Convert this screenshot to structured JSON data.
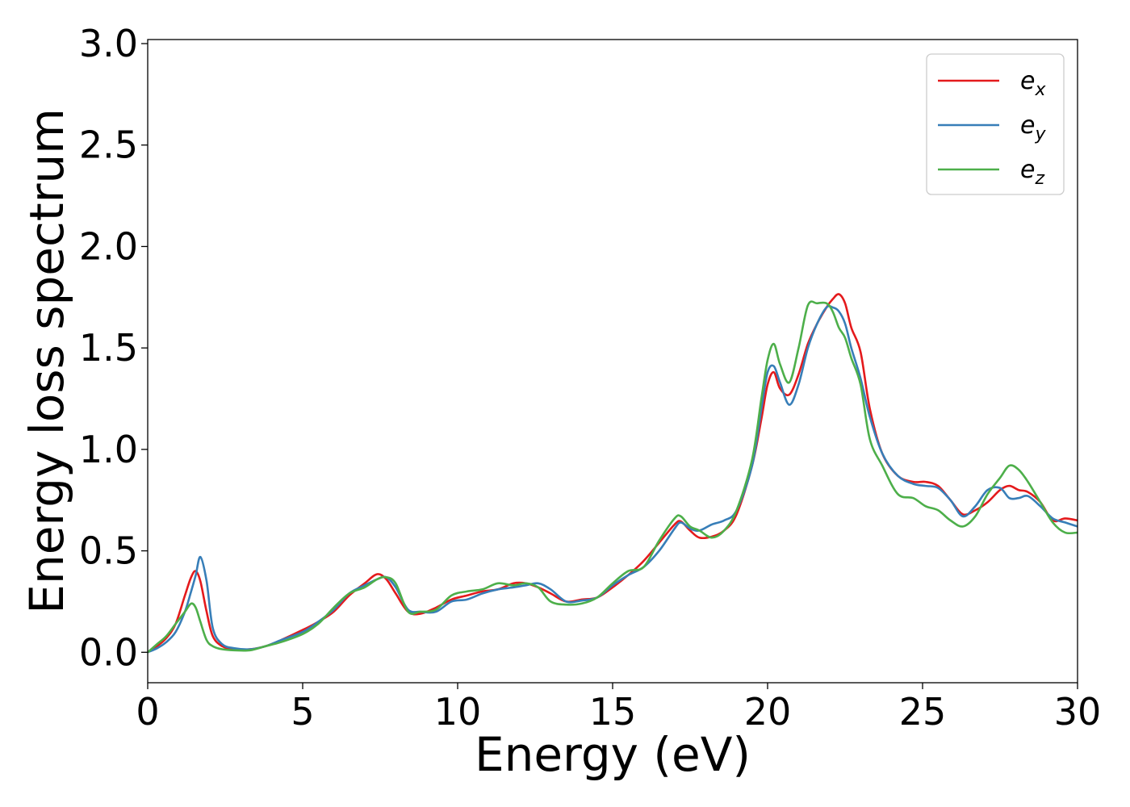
{
  "chart_data": {
    "type": "line",
    "xlabel": "Energy (eV)",
    "ylabel": "Energy loss spectrum",
    "xlim": [
      0,
      30
    ],
    "ylim": [
      -0.15,
      3.02
    ],
    "xticks": [
      0,
      5,
      10,
      15,
      20,
      25,
      30
    ],
    "yticks": [
      0.0,
      0.5,
      1.0,
      1.5,
      2.0,
      2.5,
      3.0
    ],
    "xtick_labels": [
      "0",
      "5",
      "10",
      "15",
      "20",
      "25",
      "30"
    ],
    "ytick_labels": [
      "0.0",
      "0.5",
      "1.0",
      "1.5",
      "2.0",
      "2.5",
      "3.0"
    ],
    "grid": false,
    "legend_position": "top-right",
    "series": [
      {
        "name": "e_x",
        "label_base": "e",
        "label_sub": "x",
        "color": "#e41a1c",
        "x": [
          0,
          0.3,
          0.6,
          0.9,
          1.2,
          1.4,
          1.55,
          1.7,
          1.9,
          2.1,
          2.4,
          2.8,
          3.3,
          3.8,
          4.3,
          5.0,
          5.5,
          6.0,
          6.5,
          7.0,
          7.4,
          7.7,
          8.0,
          8.4,
          8.8,
          9.3,
          9.8,
          10.3,
          10.8,
          11.3,
          11.8,
          12.2,
          12.6,
          13.0,
          13.5,
          14.0,
          14.5,
          15.0,
          15.5,
          16.0,
          16.5,
          17.0,
          17.2,
          17.5,
          17.8,
          18.2,
          18.6,
          19.0,
          19.5,
          19.8,
          20.0,
          20.2,
          20.4,
          20.7,
          21.0,
          21.3,
          21.6,
          21.9,
          22.1,
          22.3,
          22.5,
          22.7,
          23.0,
          23.3,
          23.7,
          24.2,
          24.7,
          25.1,
          25.5,
          25.9,
          26.3,
          26.7,
          27.1,
          27.5,
          27.8,
          28.1,
          28.4,
          28.8,
          29.2,
          29.6,
          30.0
        ],
        "y": [
          0,
          0.03,
          0.07,
          0.14,
          0.28,
          0.37,
          0.4,
          0.35,
          0.2,
          0.08,
          0.03,
          0.015,
          0.015,
          0.03,
          0.06,
          0.11,
          0.15,
          0.2,
          0.28,
          0.34,
          0.385,
          0.36,
          0.29,
          0.2,
          0.19,
          0.22,
          0.26,
          0.28,
          0.3,
          0.31,
          0.34,
          0.34,
          0.32,
          0.29,
          0.25,
          0.26,
          0.27,
          0.32,
          0.38,
          0.45,
          0.54,
          0.63,
          0.645,
          0.6,
          0.565,
          0.57,
          0.6,
          0.68,
          0.92,
          1.15,
          1.32,
          1.38,
          1.3,
          1.27,
          1.37,
          1.52,
          1.62,
          1.7,
          1.74,
          1.765,
          1.72,
          1.6,
          1.48,
          1.2,
          0.98,
          0.87,
          0.84,
          0.84,
          0.82,
          0.75,
          0.68,
          0.7,
          0.74,
          0.8,
          0.82,
          0.8,
          0.79,
          0.74,
          0.65,
          0.66,
          0.65
        ]
      },
      {
        "name": "e_y",
        "label_base": "e",
        "label_sub": "y",
        "color": "#377eb8",
        "x": [
          0,
          0.3,
          0.6,
          0.9,
          1.2,
          1.4,
          1.55,
          1.7,
          1.9,
          2.1,
          2.4,
          2.8,
          3.3,
          3.8,
          4.3,
          5.0,
          5.5,
          6.0,
          6.5,
          7.0,
          7.4,
          7.7,
          8.0,
          8.4,
          8.8,
          9.3,
          9.8,
          10.3,
          10.8,
          11.3,
          11.8,
          12.2,
          12.6,
          13.0,
          13.5,
          14.0,
          14.5,
          15.0,
          15.5,
          16.0,
          16.5,
          17.0,
          17.2,
          17.5,
          17.8,
          18.2,
          18.6,
          19.0,
          19.5,
          19.8,
          20.0,
          20.2,
          20.4,
          20.7,
          21.0,
          21.3,
          21.6,
          21.9,
          22.1,
          22.3,
          22.5,
          22.7,
          23.0,
          23.3,
          23.7,
          24.2,
          24.7,
          25.1,
          25.5,
          25.9,
          26.3,
          26.7,
          27.1,
          27.5,
          27.8,
          28.1,
          28.4,
          28.8,
          29.2,
          29.6,
          30.0
        ],
        "y": [
          0,
          0.02,
          0.05,
          0.1,
          0.2,
          0.3,
          0.38,
          0.47,
          0.35,
          0.12,
          0.04,
          0.02,
          0.015,
          0.03,
          0.06,
          0.1,
          0.15,
          0.21,
          0.29,
          0.33,
          0.36,
          0.37,
          0.32,
          0.21,
          0.2,
          0.2,
          0.25,
          0.26,
          0.29,
          0.31,
          0.32,
          0.33,
          0.34,
          0.31,
          0.25,
          0.255,
          0.27,
          0.33,
          0.38,
          0.42,
          0.5,
          0.61,
          0.64,
          0.61,
          0.6,
          0.63,
          0.65,
          0.7,
          0.92,
          1.2,
          1.38,
          1.41,
          1.33,
          1.22,
          1.32,
          1.5,
          1.62,
          1.7,
          1.7,
          1.68,
          1.62,
          1.5,
          1.35,
          1.16,
          0.98,
          0.87,
          0.83,
          0.82,
          0.81,
          0.75,
          0.67,
          0.72,
          0.8,
          0.81,
          0.76,
          0.76,
          0.77,
          0.72,
          0.66,
          0.64,
          0.62
        ]
      },
      {
        "name": "e_z",
        "label_base": "e",
        "label_sub": "z",
        "color": "#4daf4a",
        "x": [
          0,
          0.3,
          0.6,
          0.9,
          1.2,
          1.4,
          1.55,
          1.7,
          1.9,
          2.1,
          2.4,
          2.8,
          3.3,
          3.8,
          4.3,
          5.0,
          5.5,
          6.0,
          6.5,
          7.0,
          7.4,
          7.7,
          8.0,
          8.4,
          8.8,
          9.3,
          9.8,
          10.3,
          10.8,
          11.3,
          11.8,
          12.2,
          12.6,
          13.0,
          13.5,
          14.0,
          14.5,
          15.0,
          15.5,
          16.0,
          16.5,
          17.0,
          17.2,
          17.5,
          17.8,
          18.2,
          18.6,
          19.0,
          19.5,
          19.8,
          20.0,
          20.2,
          20.4,
          20.7,
          21.0,
          21.3,
          21.6,
          21.9,
          22.1,
          22.3,
          22.5,
          22.7,
          23.0,
          23.3,
          23.7,
          24.2,
          24.7,
          25.1,
          25.5,
          25.9,
          26.3,
          26.7,
          27.1,
          27.5,
          27.8,
          28.1,
          28.4,
          28.8,
          29.2,
          29.6,
          30.0
        ],
        "y": [
          0,
          0.04,
          0.08,
          0.14,
          0.2,
          0.24,
          0.22,
          0.15,
          0.06,
          0.03,
          0.015,
          0.01,
          0.01,
          0.03,
          0.05,
          0.09,
          0.14,
          0.22,
          0.29,
          0.32,
          0.36,
          0.37,
          0.34,
          0.2,
          0.2,
          0.21,
          0.28,
          0.3,
          0.31,
          0.34,
          0.33,
          0.34,
          0.32,
          0.25,
          0.235,
          0.24,
          0.27,
          0.34,
          0.4,
          0.42,
          0.55,
          0.66,
          0.67,
          0.62,
          0.6,
          0.565,
          0.6,
          0.7,
          0.95,
          1.25,
          1.44,
          1.52,
          1.42,
          1.33,
          1.5,
          1.71,
          1.72,
          1.72,
          1.68,
          1.6,
          1.55,
          1.45,
          1.32,
          1.05,
          0.92,
          0.78,
          0.76,
          0.72,
          0.7,
          0.65,
          0.62,
          0.67,
          0.78,
          0.86,
          0.92,
          0.9,
          0.84,
          0.74,
          0.64,
          0.59,
          0.59
        ]
      }
    ]
  }
}
